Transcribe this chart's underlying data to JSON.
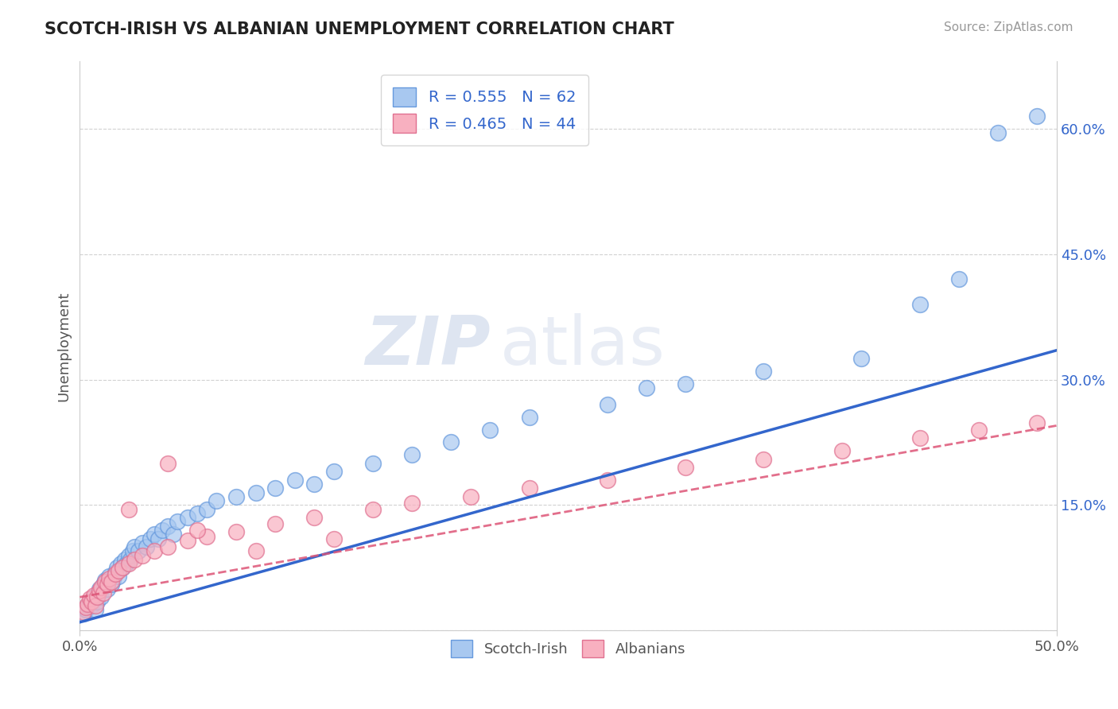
{
  "title": "SCOTCH-IRISH VS ALBANIAN UNEMPLOYMENT CORRELATION CHART",
  "source": "Source: ZipAtlas.com",
  "ylabel": "Unemployment",
  "xlim": [
    0,
    0.5
  ],
  "ylim": [
    0,
    0.68
  ],
  "yticks_right": [
    0.0,
    0.15,
    0.3,
    0.45,
    0.6
  ],
  "ytick_labels_right": [
    "",
    "15.0%",
    "30.0%",
    "45.0%",
    "60.0%"
  ],
  "legend_r1": "R = 0.555",
  "legend_n1": "N = 62",
  "legend_r2": "R = 0.465",
  "legend_n2": "N = 44",
  "color_blue": "#A8C8F0",
  "color_blue_edge": "#6699DD",
  "color_blue_line": "#3366CC",
  "color_pink": "#F8B0C0",
  "color_pink_edge": "#E07090",
  "color_pink_line": "#DD5577",
  "watermark_zip": "ZIP",
  "watermark_atlas": "atlas",
  "background_color": "#FFFFFF",
  "scotch_irish_x": [
    0.002,
    0.003,
    0.004,
    0.005,
    0.006,
    0.007,
    0.008,
    0.009,
    0.01,
    0.01,
    0.011,
    0.012,
    0.013,
    0.014,
    0.015,
    0.016,
    0.017,
    0.018,
    0.019,
    0.02,
    0.021,
    0.022,
    0.023,
    0.024,
    0.025,
    0.026,
    0.027,
    0.028,
    0.03,
    0.032,
    0.034,
    0.036,
    0.038,
    0.04,
    0.042,
    0.045,
    0.048,
    0.05,
    0.055,
    0.06,
    0.065,
    0.07,
    0.08,
    0.09,
    0.1,
    0.11,
    0.12,
    0.13,
    0.15,
    0.17,
    0.19,
    0.21,
    0.23,
    0.27,
    0.29,
    0.31,
    0.35,
    0.4,
    0.43,
    0.45,
    0.47,
    0.49
  ],
  "scotch_irish_y": [
    0.02,
    0.025,
    0.03,
    0.035,
    0.03,
    0.04,
    0.025,
    0.035,
    0.045,
    0.05,
    0.04,
    0.055,
    0.06,
    0.05,
    0.065,
    0.055,
    0.06,
    0.07,
    0.075,
    0.065,
    0.08,
    0.075,
    0.085,
    0.08,
    0.09,
    0.085,
    0.095,
    0.1,
    0.095,
    0.105,
    0.1,
    0.11,
    0.115,
    0.11,
    0.12,
    0.125,
    0.115,
    0.13,
    0.135,
    0.14,
    0.145,
    0.155,
    0.16,
    0.165,
    0.17,
    0.18,
    0.175,
    0.19,
    0.2,
    0.21,
    0.225,
    0.24,
    0.255,
    0.27,
    0.29,
    0.295,
    0.31,
    0.325,
    0.39,
    0.42,
    0.595,
    0.615
  ],
  "albanians_x": [
    0.002,
    0.003,
    0.004,
    0.005,
    0.006,
    0.007,
    0.008,
    0.009,
    0.01,
    0.011,
    0.012,
    0.013,
    0.014,
    0.015,
    0.016,
    0.018,
    0.02,
    0.022,
    0.025,
    0.028,
    0.032,
    0.038,
    0.045,
    0.055,
    0.065,
    0.08,
    0.1,
    0.12,
    0.15,
    0.17,
    0.2,
    0.23,
    0.27,
    0.31,
    0.35,
    0.39,
    0.43,
    0.46,
    0.49,
    0.045,
    0.025,
    0.06,
    0.09,
    0.13
  ],
  "albanians_y": [
    0.022,
    0.028,
    0.032,
    0.038,
    0.035,
    0.042,
    0.03,
    0.04,
    0.048,
    0.052,
    0.045,
    0.058,
    0.055,
    0.062,
    0.058,
    0.068,
    0.072,
    0.075,
    0.08,
    0.085,
    0.09,
    0.095,
    0.1,
    0.108,
    0.112,
    0.118,
    0.128,
    0.135,
    0.145,
    0.152,
    0.16,
    0.17,
    0.18,
    0.195,
    0.205,
    0.215,
    0.23,
    0.24,
    0.248,
    0.2,
    0.145,
    0.12,
    0.095,
    0.11
  ],
  "blue_line_x": [
    0.0,
    0.5
  ],
  "blue_line_y": [
    0.01,
    0.335
  ],
  "pink_line_x": [
    0.0,
    0.5
  ],
  "pink_line_y": [
    0.04,
    0.245
  ]
}
